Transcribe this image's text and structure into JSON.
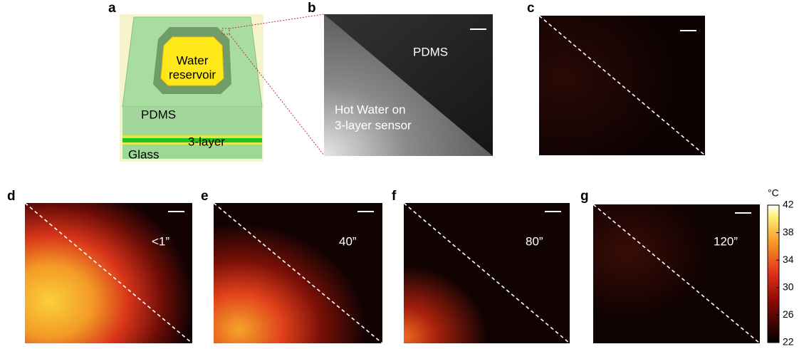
{
  "panels": {
    "a": {
      "label": "a",
      "reservoir": [
        "Water",
        "reservoir"
      ],
      "pdms": "PDMS",
      "sensor": "3-layer",
      "glass": "Glass"
    },
    "b": {
      "label": "b",
      "pdms": "PDMS",
      "water": [
        "Hot Water on",
        "3-layer sensor"
      ]
    },
    "c": {
      "label": "c"
    },
    "d": {
      "label": "d",
      "time": "<1”"
    },
    "e": {
      "label": "e",
      "time": "40”"
    },
    "f": {
      "label": "f",
      "time": "80”"
    },
    "g": {
      "label": "g",
      "time": "120”"
    }
  },
  "colorbar": {
    "unit": "°C",
    "lim": [
      22,
      42
    ],
    "ticks": [
      22,
      26,
      30,
      34,
      38,
      42
    ]
  }
}
